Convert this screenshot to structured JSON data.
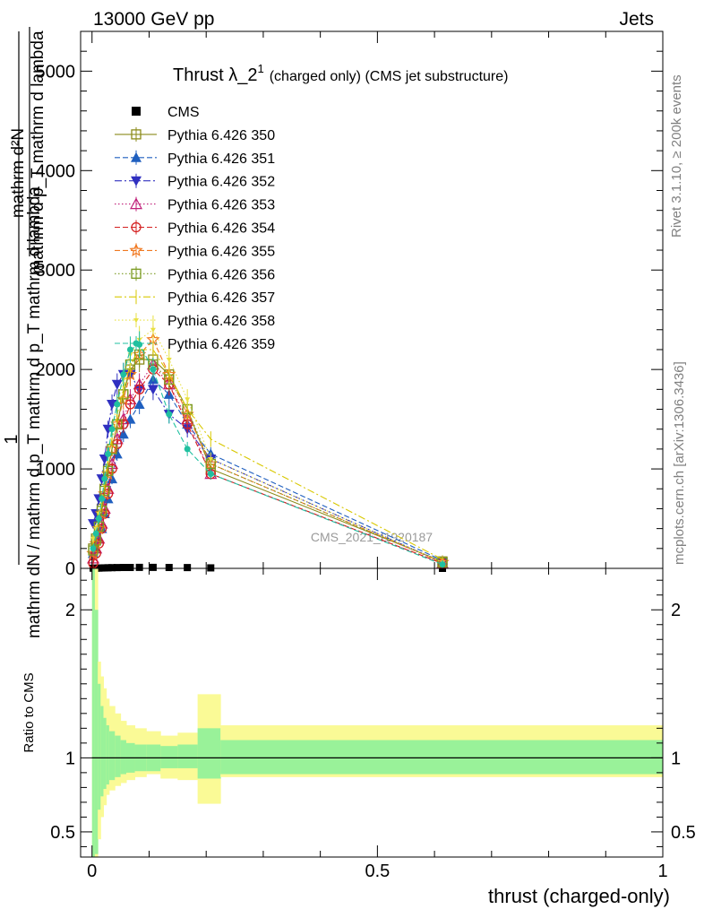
{
  "header": {
    "left_label": "13000 GeV pp",
    "right_label": "Jets"
  },
  "side_labels": {
    "rivet": "Rivet 3.1.10, ≥ 200k events",
    "mcplots": "mcplots.cern.ch [arXiv:1306.3436]"
  },
  "watermark": "CMS_2021_I1920187",
  "main_ylabel": {
    "top_one": "1",
    "top_frac": "mathrm d²N",
    "top_den": "mathrm d p_T mathrm d lambda",
    "bottom_frac": "mathrm dN / mathrm d p_T mathrm d p_T mathrm d lambda"
  },
  "ratio_ylabel": "Ratio to CMS",
  "colors": {
    "cms": "#000000",
    "p350": "#8b8b1a",
    "p351": "#1f5fbf",
    "p352": "#3030c0",
    "p353": "#c0207a",
    "p354": "#d42020",
    "p355": "#f07820",
    "p356": "#7a9a20",
    "p357": "#d8c800",
    "p358": "#e8e040",
    "p359": "#20c0a0",
    "band_inner": "#99f299",
    "band_outer": "#fafa96"
  },
  "chart_data": [
    {
      "type": "line",
      "title": "Thrust λ_2¹ (charged only) (CMS jet substructure)",
      "title_main": "Thrust λ_2",
      "title_sup": "1",
      "title_sub": "(charged only) (CMS jet substructure)",
      "xlabel": "thrust (charged-only)",
      "ylabel": "1/mathrm dN / mathrm d p_T mathrm d p_T mathrm d lambda · mathrm d²N / mathrm d p_T mathrm d lambda",
      "xlim": [
        -0.02,
        1.0
      ],
      "ylim": [
        0,
        5400
      ],
      "xticks": [
        0,
        0.5,
        1
      ],
      "yticks": [
        0,
        1000,
        2000,
        3000,
        4000,
        5000
      ],
      "yticklabels": [
        "0",
        "1000",
        "2000",
        "3000",
        "4000",
        "5000"
      ],
      "legend_position": "top-left",
      "x": [
        0.002,
        0.007,
        0.012,
        0.017,
        0.022,
        0.028,
        0.035,
        0.044,
        0.055,
        0.067,
        0.083,
        0.107,
        0.135,
        0.167,
        0.208,
        0.614
      ],
      "series": [
        {
          "name": "CMS",
          "marker": "filled-square",
          "dash": "none",
          "values": [
            2,
            2,
            3,
            4,
            5,
            6,
            7,
            8,
            9,
            9,
            10,
            10,
            9,
            8,
            5,
            0
          ]
        },
        {
          "name": "Pythia 6.426 350",
          "marker": "open-square",
          "dash": "solid",
          "values": [
            200,
            300,
            450,
            600,
            800,
            1000,
            1200,
            1450,
            1750,
            2000,
            2100,
            2100,
            1950,
            1600,
            1000,
            70
          ]
        },
        {
          "name": "Pythia 6.426 351",
          "marker": "filled-triangle-up",
          "dash": "dashed",
          "values": [
            150,
            200,
            300,
            400,
            550,
            700,
            900,
            1150,
            1350,
            1500,
            1650,
            1900,
            1750,
            1450,
            1150,
            80
          ]
        },
        {
          "name": "Pythia 6.426 352",
          "marker": "filled-triangle-down",
          "dash": "dashdot",
          "values": [
            450,
            550,
            700,
            900,
            1100,
            1400,
            1650,
            1850,
            1950,
            1950,
            1800,
            1800,
            1550,
            1400,
            1100,
            60
          ]
        },
        {
          "name": "Pythia 6.426 353",
          "marker": "open-triangle-up",
          "dash": "dotted",
          "values": [
            100,
            200,
            300,
            450,
            600,
            800,
            1050,
            1300,
            1500,
            1700,
            1850,
            2050,
            1850,
            1500,
            950,
            50
          ]
        },
        {
          "name": "Pythia 6.426 354",
          "marker": "open-circle",
          "dash": "dashed",
          "values": [
            50,
            150,
            250,
            400,
            550,
            750,
            1000,
            1250,
            1450,
            1650,
            1800,
            2000,
            1850,
            1450,
            950,
            50
          ]
        },
        {
          "name": "Pythia 6.426 355",
          "marker": "open-star",
          "dash": "dashed",
          "values": [
            150,
            250,
            400,
            550,
            750,
            950,
            1200,
            1450,
            1700,
            1950,
            2150,
            2300,
            1950,
            1550,
            1050,
            60
          ]
        },
        {
          "name": "Pythia 6.426 356",
          "marker": "open-square",
          "dash": "dotted",
          "values": [
            180,
            280,
            420,
            580,
            780,
            980,
            1200,
            1450,
            1750,
            2050,
            2150,
            2050,
            1900,
            1600,
            1050,
            60
          ]
        },
        {
          "name": "Pythia 6.426 357",
          "marker": "none",
          "dash": "dashdot",
          "values": [
            250,
            350,
            500,
            650,
            850,
            1100,
            1300,
            1550,
            1800,
            2050,
            2200,
            2200,
            1950,
            1600,
            1300,
            90
          ]
        },
        {
          "name": "Pythia 6.426 358",
          "marker": "small-triangle-down",
          "dash": "dotted",
          "values": [
            300,
            400,
            550,
            700,
            900,
            1150,
            1400,
            1650,
            1900,
            2150,
            2300,
            2400,
            2100,
            1700,
            1100,
            60
          ]
        },
        {
          "name": "Pythia 6.426 359",
          "marker": "filled-circle",
          "dash": "dashed",
          "values": [
            200,
            350,
            500,
            700,
            900,
            1150,
            1400,
            1650,
            1950,
            2200,
            2250,
            2000,
            1550,
            1200,
            950,
            40
          ]
        }
      ]
    },
    {
      "type": "area",
      "ylabel": "Ratio to CMS",
      "xlabel": "thrust (charged-only)",
      "xlim": [
        -0.02,
        1.0
      ],
      "ylim": [
        0.33,
        2.28
      ],
      "xticks": [
        0,
        0.5,
        1
      ],
      "xticklabels": [
        "0",
        "0.5",
        "1"
      ],
      "yticks": [
        0.5,
        1,
        2
      ],
      "yticklabels": [
        "0.5",
        "1",
        "2"
      ],
      "reference_line": 1,
      "band_edges": [
        0.0,
        0.005,
        0.01,
        0.015,
        0.02,
        0.025,
        0.03,
        0.04,
        0.05,
        0.06,
        0.075,
        0.095,
        0.12,
        0.15,
        0.185,
        0.225,
        1.0
      ],
      "outer_upper": [
        2.28,
        2.28,
        1.65,
        1.55,
        1.47,
        1.4,
        1.35,
        1.3,
        1.25,
        1.22,
        1.2,
        1.18,
        1.15,
        1.17,
        1.43,
        1.22
      ],
      "outer_lower": [
        0.33,
        0.33,
        0.45,
        0.6,
        0.68,
        0.75,
        0.78,
        0.81,
        0.83,
        0.85,
        0.87,
        0.89,
        0.86,
        0.85,
        0.69,
        0.87
      ],
      "inner_upper": [
        2.28,
        2.0,
        1.5,
        1.35,
        1.27,
        1.22,
        1.18,
        1.15,
        1.12,
        1.1,
        1.09,
        1.09,
        1.08,
        1.09,
        1.2,
        1.12
      ],
      "inner_lower": [
        0.33,
        0.35,
        0.65,
        0.74,
        0.79,
        0.82,
        0.85,
        0.87,
        0.89,
        0.9,
        0.91,
        0.91,
        0.93,
        0.93,
        0.86,
        0.89
      ]
    }
  ]
}
